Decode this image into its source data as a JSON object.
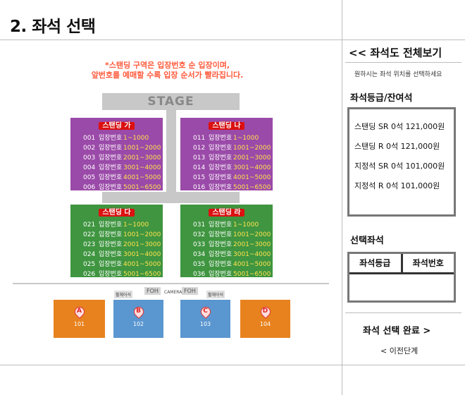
{
  "page_title": "2. 좌석 선택",
  "notice": [
    "*스탠딩 구역은 입장번호 순 입장이며,",
    "앞번호를 예매할 수록 입장 순서가 빨라집니다."
  ],
  "stage_label": "STAGE",
  "range_label": "입장번호",
  "blocks": [
    {
      "name": "스탠딩 가",
      "rows": [
        [
          "001",
          "1~1000"
        ],
        [
          "002",
          "1001~2000"
        ],
        [
          "003",
          "2001~3000"
        ],
        [
          "004",
          "3001~4000"
        ],
        [
          "005",
          "4001~5000"
        ],
        [
          "006",
          "5001~6500"
        ]
      ]
    },
    {
      "name": "스탠딩 나",
      "rows": [
        [
          "011",
          "1~1000"
        ],
        [
          "012",
          "1001~2000"
        ],
        [
          "013",
          "2001~3000"
        ],
        [
          "014",
          "3001~4000"
        ],
        [
          "015",
          "4001~5000"
        ],
        [
          "016",
          "5001~6500"
        ]
      ]
    },
    {
      "name": "스탠딩 다",
      "rows": [
        [
          "021",
          "1~1000"
        ],
        [
          "022",
          "1001~2000"
        ],
        [
          "023",
          "2001~3000"
        ],
        [
          "024",
          "3001~4000"
        ],
        [
          "025",
          "4001~5000"
        ],
        [
          "026",
          "5001~6500"
        ]
      ]
    },
    {
      "name": "스탠딩 라",
      "rows": [
        [
          "031",
          "1~1000"
        ],
        [
          "032",
          "1001~2000"
        ],
        [
          "033",
          "2001~3000"
        ],
        [
          "034",
          "3001~4000"
        ],
        [
          "035",
          "4001~5000"
        ],
        [
          "036",
          "5001~6500"
        ]
      ]
    }
  ],
  "seat_sections": [
    {
      "letter": "A",
      "number": "101"
    },
    {
      "letter": "B",
      "number": "102"
    },
    {
      "letter": "C",
      "number": "103"
    },
    {
      "letter": "D",
      "number": "104"
    }
  ],
  "booth": {
    "foh": "FOH",
    "camera": "CAMERA",
    "wheelchair": "휠체어석"
  },
  "sidebar": {
    "full_view_link": "<< 좌석도 전체보기",
    "hint": "원하시는 좌석 위치를 선택하세요",
    "grade_heading": "좌석등급/잔여석",
    "grades": [
      "스탠딩 SR 0석 121,000원",
      "스탠딩 R 0석 121,000원",
      "지정석 SR 0석 101,000원",
      "지정석 R 0석 101,000원"
    ],
    "selected_heading": "선택좌석",
    "col_grade": "좌석등급",
    "col_number": "좌석번호",
    "complete_button": "좌석 선택 완료 >",
    "prev_button": "< 이전단계"
  },
  "colors": {
    "notice": "#ff5a3c",
    "purple": "#9a4aa8",
    "green": "#3f9540",
    "orange": "#e8821e",
    "blue": "#5a96d0"
  }
}
